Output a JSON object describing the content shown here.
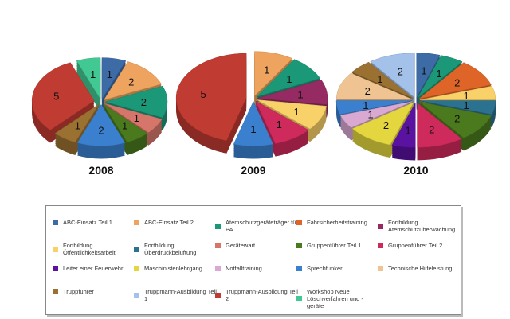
{
  "chart_data": {
    "type": "pie",
    "style": "3d-exploded",
    "legend_placement": "bottom",
    "categories": [
      "ABC-Einsatz Teil 1",
      "ABC-Einsatz Teil 2",
      "Atemschutzgeräteträger für PA",
      "Fahrsicherheitstraining",
      "Fortbildung Atemschutzüberwachung",
      "Fortbildung Öffentlichkeitsarbeit",
      "Fortbildung Überdruckbelüftung",
      "Gerätewart",
      "Gruppenführer Teil 1",
      "Gruppenführer Teil 2",
      "Leiter einer Feuerwehr",
      "Maschinistenlehrgang",
      "Notfalltraining",
      "Sprechfunker",
      "Technische Hilfeleistung",
      "Truppführer",
      "Truppmann-Ausbildung Teil 1",
      "Truppmann-Ausbildung Teil 2",
      "Workshop Neue Löschverfahren und -geräte"
    ],
    "colors": [
      "#3d6ba6",
      "#eea45e",
      "#1b9877",
      "#de6428",
      "#952b62",
      "#f8d168",
      "#2b7190",
      "#d6766a",
      "#4b7a1e",
      "#cf2a5c",
      "#5a12a0",
      "#e3d63e",
      "#d9a9d2",
      "#3b80cf",
      "#f0c492",
      "#9b7132",
      "#a3c1e9",
      "#c03b32",
      "#42c893"
    ],
    "pies": [
      {
        "title": "2008",
        "slices": [
          {
            "category": 0,
            "value": 1
          },
          {
            "category": 1,
            "value": 2
          },
          {
            "category": 2,
            "value": 2
          },
          {
            "category": 7,
            "value": 1
          },
          {
            "category": 8,
            "value": 1
          },
          {
            "category": 13,
            "value": 2
          },
          {
            "category": 15,
            "value": 1
          },
          {
            "category": 17,
            "value": 5
          },
          {
            "category": 18,
            "value": 1
          }
        ]
      },
      {
        "title": "2009",
        "slices": [
          {
            "category": 1,
            "value": 1
          },
          {
            "category": 2,
            "value": 1
          },
          {
            "category": 4,
            "value": 1
          },
          {
            "category": 5,
            "value": 1
          },
          {
            "category": 9,
            "value": 1
          },
          {
            "category": 13,
            "value": 1
          },
          {
            "category": 17,
            "value": 5
          }
        ]
      },
      {
        "title": "2010",
        "slices": [
          {
            "category": 0,
            "value": 1
          },
          {
            "category": 2,
            "value": 1
          },
          {
            "category": 3,
            "value": 2
          },
          {
            "category": 5,
            "value": 1
          },
          {
            "category": 6,
            "value": 1
          },
          {
            "category": 8,
            "value": 2
          },
          {
            "category": 9,
            "value": 2
          },
          {
            "category": 10,
            "value": 1
          },
          {
            "category": 11,
            "value": 2
          },
          {
            "category": 12,
            "value": 1
          },
          {
            "category": 13,
            "value": 1
          },
          {
            "category": 14,
            "value": 2
          },
          {
            "category": 15,
            "value": 1
          },
          {
            "category": 16,
            "value": 2
          }
        ]
      }
    ]
  }
}
